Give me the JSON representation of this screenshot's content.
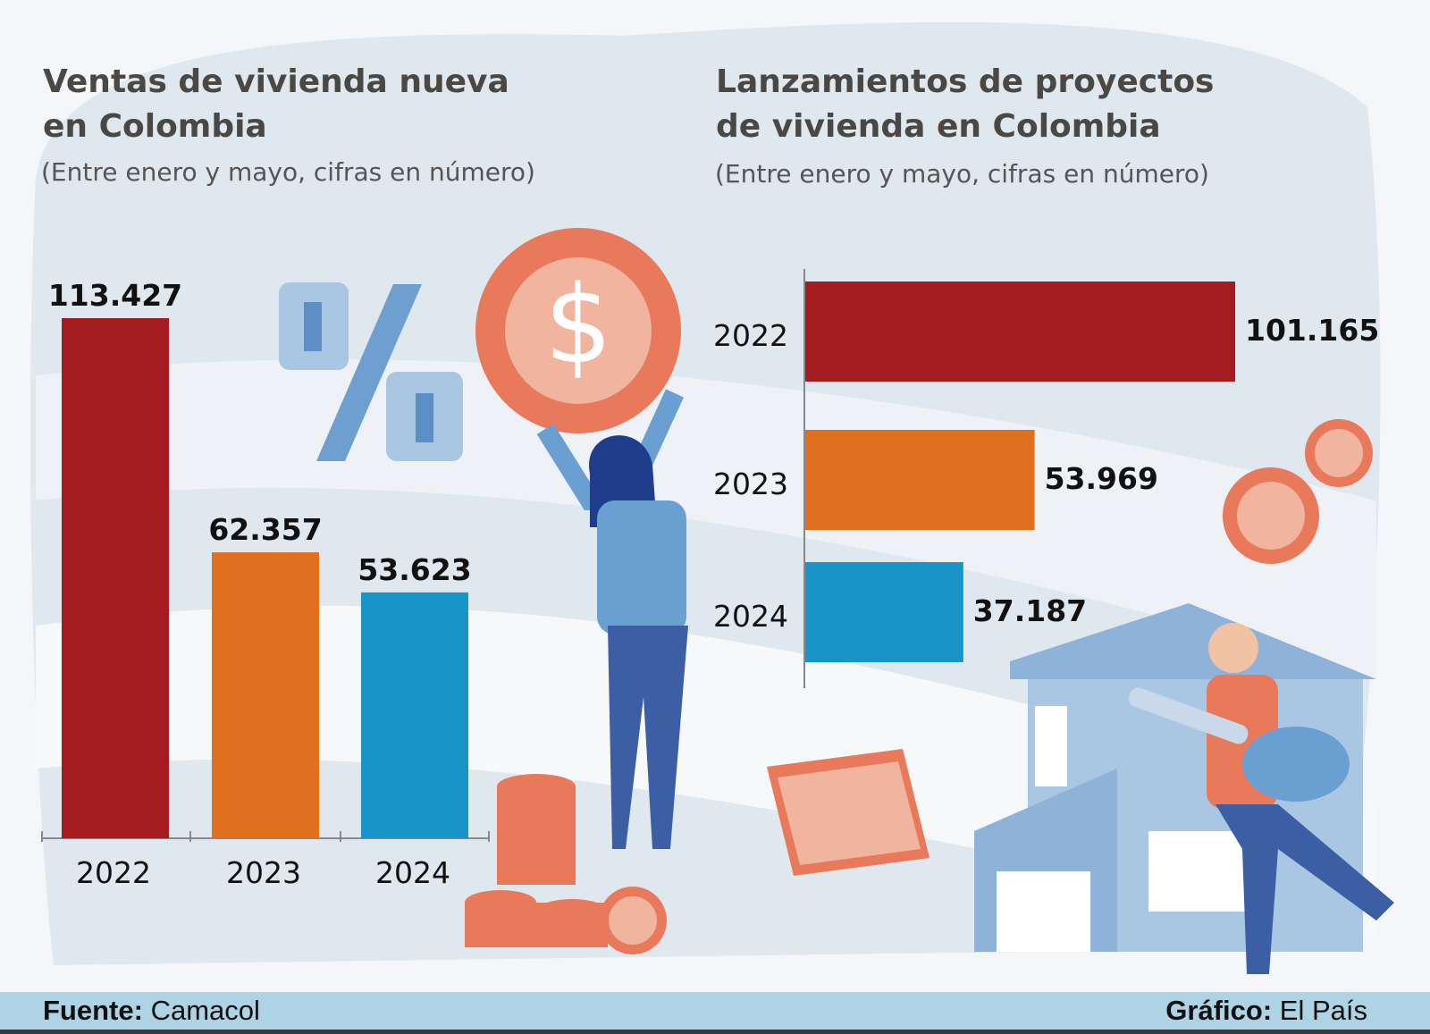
{
  "chart_data": [
    {
      "type": "bar",
      "orientation": "vertical",
      "title": "Ventas de vivienda nueva en Colombia",
      "subtitle": "(Entre enero y mayo, cifras en número)",
      "categories": [
        "2022",
        "2023",
        "2024"
      ],
      "values": [
        113427,
        62357,
        53623
      ],
      "data_labels": [
        "113.427",
        "62.357",
        "53.623"
      ],
      "colors": [
        "#a51c20",
        "#e0701e",
        "#1795c9"
      ],
      "grid": false
    },
    {
      "type": "bar",
      "orientation": "horizontal",
      "title": "Lanzamientos de proyectos de vivienda en Colombia",
      "subtitle": "(Entre enero y mayo, cifras en número)",
      "categories": [
        "2022",
        "2023",
        "2024"
      ],
      "values": [
        101165,
        53969,
        37187
      ],
      "data_labels": [
        "101.165",
        "53.969",
        "37.187"
      ],
      "colors": [
        "#a51c20",
        "#e0701e",
        "#1795c9"
      ],
      "grid": false
    }
  ],
  "left": {
    "title_line1": "Ventas de vivienda nueva",
    "title_line2": "en Colombia"
  },
  "right": {
    "title_line1": "Lanzamientos de proyectos",
    "title_line2": "de vivienda en Colombia"
  },
  "footer": {
    "source_label": "Fuente:",
    "source": "Camacol",
    "credit_label": "Gráfico:",
    "credit": "El País"
  },
  "background_color": "#aed3e5"
}
